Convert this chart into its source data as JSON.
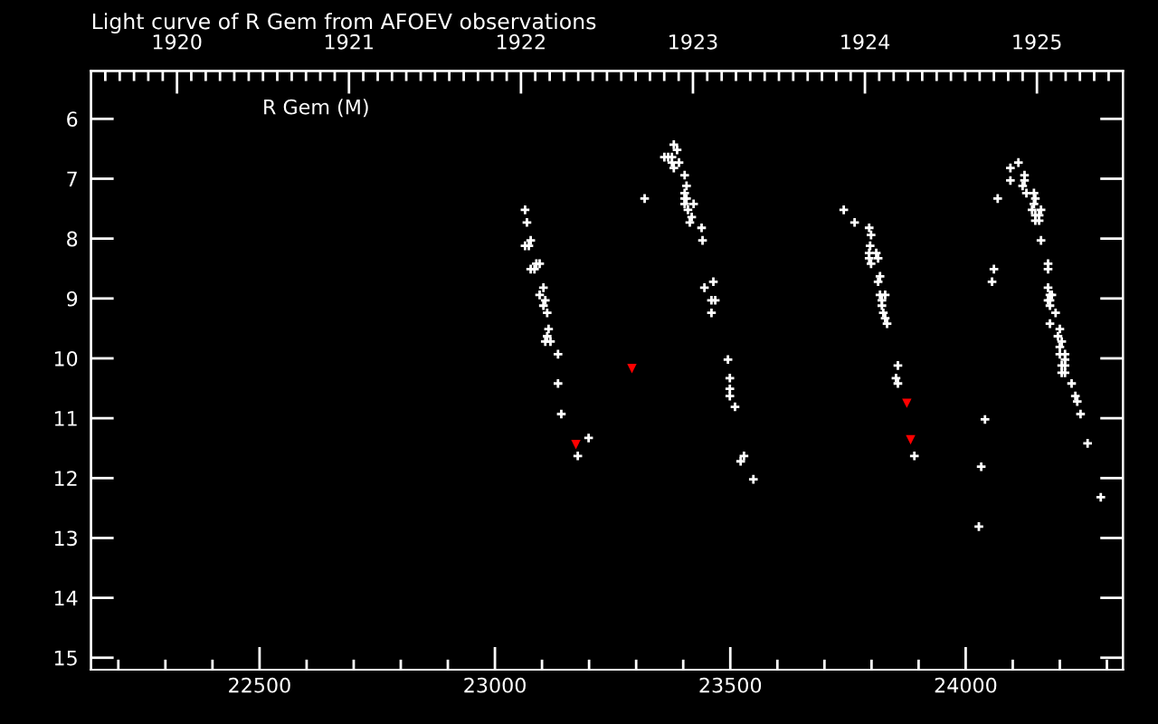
{
  "chart_data": {
    "type": "scatter",
    "title": "Light curve of R Gem from AFOEV observations",
    "annotations": [
      "R Gem (M)"
    ],
    "marker": "cross",
    "xlim": [
      22142,
      24334
    ],
    "xticks": [
      {
        "value": 22200,
        "label": null
      },
      {
        "value": 22300,
        "label": null
      },
      {
        "value": 22400,
        "label": null
      },
      22500,
      {
        "value": 22600,
        "label": null
      },
      {
        "value": 22700,
        "label": null
      },
      {
        "value": 22800,
        "label": null
      },
      {
        "value": 22900,
        "label": null
      },
      23000,
      {
        "value": 23100,
        "label": null
      },
      {
        "value": 23200,
        "label": null
      },
      {
        "value": 23300,
        "label": null
      },
      {
        "value": 23400,
        "label": null
      },
      23500,
      {
        "value": 23600,
        "label": null
      },
      {
        "value": 23700,
        "label": null
      },
      {
        "value": 23800,
        "label": null
      },
      {
        "value": 23900,
        "label": null
      },
      24000,
      {
        "value": 24100,
        "label": null
      },
      {
        "value": 24200,
        "label": null
      },
      {
        "value": 24300,
        "label": null
      }
    ],
    "ylim": [
      15.2,
      5.2
    ],
    "yticks": [
      6,
      7,
      8,
      9,
      10,
      11,
      12,
      13,
      14,
      15
    ],
    "x2lim": [
      1919.5,
      1925.5
    ],
    "x2ticks": [
      {
        "value": 1919.583,
        "label": null
      },
      {
        "value": 1919.667,
        "label": null
      },
      {
        "value": 1919.75,
        "label": null
      },
      {
        "value": 1919.833,
        "label": null
      },
      {
        "value": 1919.917,
        "label": null
      },
      1920,
      {
        "value": 1920.083,
        "label": null
      },
      {
        "value": 1920.167,
        "label": null
      },
      {
        "value": 1920.25,
        "label": null
      },
      {
        "value": 1920.333,
        "label": null
      },
      {
        "value": 1920.417,
        "label": null
      },
      {
        "value": 1920.5,
        "label": null
      },
      {
        "value": 1920.583,
        "label": null
      },
      {
        "value": 1920.667,
        "label": null
      },
      {
        "value": 1920.75,
        "label": null
      },
      {
        "value": 1920.833,
        "label": null
      },
      {
        "value": 1920.917,
        "label": null
      },
      1921,
      {
        "value": 1921.083,
        "label": null
      },
      {
        "value": 1921.167,
        "label": null
      },
      {
        "value": 1921.25,
        "label": null
      },
      {
        "value": 1921.333,
        "label": null
      },
      {
        "value": 1921.417,
        "label": null
      },
      {
        "value": 1921.5,
        "label": null
      },
      {
        "value": 1921.583,
        "label": null
      },
      {
        "value": 1921.667,
        "label": null
      },
      {
        "value": 1921.75,
        "label": null
      },
      {
        "value": 1921.833,
        "label": null
      },
      {
        "value": 1921.917,
        "label": null
      },
      1922,
      {
        "value": 1922.083,
        "label": null
      },
      {
        "value": 1922.167,
        "label": null
      },
      {
        "value": 1922.25,
        "label": null
      },
      {
        "value": 1922.333,
        "label": null
      },
      {
        "value": 1922.417,
        "label": null
      },
      {
        "value": 1922.5,
        "label": null
      },
      {
        "value": 1922.583,
        "label": null
      },
      {
        "value": 1922.667,
        "label": null
      },
      {
        "value": 1922.75,
        "label": null
      },
      {
        "value": 1922.833,
        "label": null
      },
      {
        "value": 1922.917,
        "label": null
      },
      1923,
      {
        "value": 1923.083,
        "label": null
      },
      {
        "value": 1923.167,
        "label": null
      },
      {
        "value": 1923.25,
        "label": null
      },
      {
        "value": 1923.333,
        "label": null
      },
      {
        "value": 1923.417,
        "label": null
      },
      {
        "value": 1923.5,
        "label": null
      },
      {
        "value": 1923.583,
        "label": null
      },
      {
        "value": 1923.667,
        "label": null
      },
      {
        "value": 1923.75,
        "label": null
      },
      {
        "value": 1923.833,
        "label": null
      },
      {
        "value": 1923.917,
        "label": null
      },
      1924,
      {
        "value": 1924.083,
        "label": null
      },
      {
        "value": 1924.167,
        "label": null
      },
      {
        "value": 1924.25,
        "label": null
      },
      {
        "value": 1924.333,
        "label": null
      },
      {
        "value": 1924.417,
        "label": null
      },
      {
        "value": 1924.5,
        "label": null
      },
      {
        "value": 1924.583,
        "label": null
      },
      {
        "value": 1924.667,
        "label": null
      },
      {
        "value": 1924.75,
        "label": null
      },
      {
        "value": 1924.833,
        "label": null
      },
      {
        "value": 1924.917,
        "label": null
      },
      1925,
      {
        "value": 1925.083,
        "label": null
      },
      {
        "value": 1925.167,
        "label": null
      },
      {
        "value": 1925.25,
        "label": null
      },
      {
        "value": 1925.333,
        "label": null
      },
      {
        "value": 1925.417,
        "label": null
      }
    ],
    "series": [
      {
        "color": "#ffffff",
        "x": [
          23064,
          23068,
          23076,
          23064,
          23072,
          23088,
          23095,
          23076,
          23084,
          23103,
          23095,
          23107,
          23103,
          23111,
          23114,
          23111,
          23107,
          23118,
          23134,
          23134,
          23141,
          23176,
          23199,
          23318,
          23380,
          23387,
          23360,
          23368,
          23376,
          23376,
          23391,
          23380,
          23403,
          23407,
          23403,
          23403,
          23407,
          23403,
          23422,
          23410,
          23418,
          23414,
          23439,
          23441,
          23464,
          23445,
          23460,
          23468,
          23460,
          23495,
          23499,
          23499,
          23499,
          23510,
          23529,
          23522,
          23549,
          23741,
          23764,
          23795,
          23799,
          23797,
          23795,
          23810,
          23795,
          23814,
          23799,
          23818,
          23814,
          23818,
          23829,
          23822,
          23822,
          23825,
          23829,
          23833,
          23856,
          23852,
          23856,
          23891,
          24041,
          24033,
          24028,
          24060,
          24056,
          24068,
          24095,
          24095,
          24112,
          24125,
          24125,
          24121,
          24129,
          24145,
          24148,
          24145,
          24141,
          24160,
          24148,
          24156,
          24148,
          24156,
          24160,
          24175,
          24175,
          24175,
          24179,
          24183,
          24175,
          24179,
          24179,
          24191,
          24179,
          24200,
          24196,
          24204,
          24200,
          24200,
          24211,
          24211,
          24204,
          24211,
          24204,
          24211,
          24225,
          24233,
          24237,
          24244,
          24259,
          24287
        ],
        "values": [
          7.52,
          7.73,
          8.03,
          8.12,
          8.12,
          8.42,
          8.42,
          8.51,
          8.51,
          8.82,
          8.94,
          9.03,
          9.12,
          9.24,
          9.51,
          9.63,
          9.72,
          9.72,
          9.93,
          10.42,
          10.93,
          11.63,
          11.33,
          7.33,
          6.43,
          6.52,
          6.64,
          6.64,
          6.64,
          6.73,
          6.73,
          6.82,
          6.94,
          7.12,
          7.24,
          7.33,
          7.33,
          7.42,
          7.42,
          7.52,
          7.64,
          7.73,
          7.82,
          8.03,
          8.72,
          8.82,
          9.03,
          9.03,
          9.24,
          10.02,
          10.33,
          10.51,
          10.63,
          10.81,
          11.63,
          11.72,
          12.02,
          7.52,
          7.73,
          7.82,
          7.94,
          8.12,
          8.24,
          8.24,
          8.33,
          8.33,
          8.42,
          8.63,
          8.72,
          8.94,
          8.94,
          9.03,
          9.12,
          9.24,
          9.33,
          9.42,
          10.12,
          10.33,
          10.42,
          11.63,
          11.02,
          11.81,
          12.81,
          8.51,
          8.72,
          7.33,
          6.82,
          7.03,
          6.73,
          6.94,
          7.03,
          7.12,
          7.24,
          7.24,
          7.33,
          7.42,
          7.52,
          7.52,
          7.61,
          7.61,
          7.7,
          7.7,
          8.03,
          8.42,
          8.51,
          8.82,
          8.94,
          8.94,
          9.03,
          9.03,
          9.12,
          9.24,
          9.42,
          9.51,
          9.63,
          9.72,
          9.81,
          9.93,
          9.93,
          10.02,
          10.12,
          10.12,
          10.24,
          10.24,
          10.42,
          10.63,
          10.72,
          10.93,
          11.42,
          12.32
        ]
      },
      {
        "color": "#ff0000",
        "marker": "triangle",
        "x": [
          23172,
          23291,
          23875,
          23883
        ],
        "values": [
          11.44,
          10.17,
          10.75,
          11.36
        ]
      }
    ]
  }
}
